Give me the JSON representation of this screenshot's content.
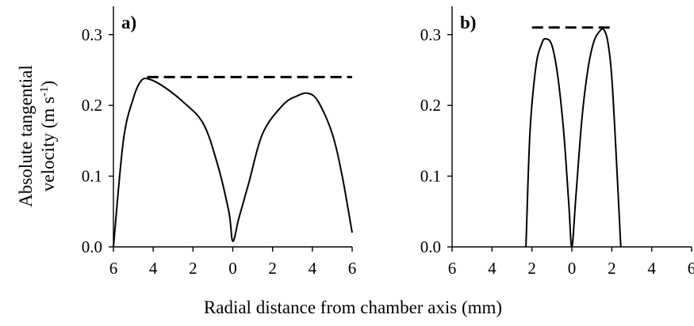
{
  "figure": {
    "shared_xlabel": "Radial distance from chamber axis (mm)",
    "ylabel_line1": "Absolute tangential",
    "ylabel_line2_prefix": "velocity (m s",
    "ylabel_line2_sup": "-1",
    "ylabel_line2_suffix": ")"
  },
  "chart_data": [
    {
      "type": "line",
      "panel": "a)",
      "x_axis": {
        "range": [
          -6,
          6
        ],
        "ticks": [
          -6,
          -4,
          -2,
          0,
          2,
          4,
          6
        ],
        "tick_labels": [
          "6",
          "4",
          "2",
          "0",
          "2",
          "4",
          "6"
        ]
      },
      "y_axis": {
        "range": [
          0,
          0.34
        ],
        "ticks": [
          0,
          0.1,
          0.2,
          0.3
        ],
        "tick_labels": [
          "0.0",
          "0.1",
          "0.2",
          "0.3"
        ]
      },
      "series": [
        {
          "style": "solid",
          "x": [
            -6.0,
            -5.5,
            -5.0,
            -4.6,
            -4.2,
            -3.5,
            -2.5,
            -1.5,
            -0.8,
            -0.2,
            0.0,
            0.3,
            0.8,
            1.5,
            2.5,
            3.2,
            3.8,
            4.3,
            5.0,
            5.5,
            6.0
          ],
          "y": [
            0.0,
            0.15,
            0.21,
            0.235,
            0.237,
            0.227,
            0.205,
            0.175,
            0.12,
            0.05,
            0.008,
            0.04,
            0.09,
            0.16,
            0.2,
            0.213,
            0.217,
            0.205,
            0.16,
            0.1,
            0.02
          ]
        },
        {
          "style": "dashed",
          "x": [
            -4.3,
            6.0
          ],
          "y": [
            0.24,
            0.24
          ]
        }
      ]
    },
    {
      "type": "line",
      "panel": "b)",
      "x_axis": {
        "range": [
          -6,
          6
        ],
        "ticks": [
          -6,
          -4,
          -2,
          0,
          2,
          4,
          6
        ],
        "tick_labels": [
          "6",
          "4",
          "2",
          "0",
          "2",
          "4",
          "6"
        ]
      },
      "y_axis": {
        "range": [
          0,
          0.34
        ],
        "ticks": [
          0,
          0.1,
          0.2,
          0.3
        ],
        "tick_labels": [
          "0.0",
          "0.1",
          "0.2",
          "0.3"
        ]
      },
      "series": [
        {
          "style": "solid",
          "x": [
            -2.3,
            -2.1,
            -1.8,
            -1.5,
            -1.3,
            -1.0,
            -0.7,
            -0.4,
            -0.15,
            0.0,
            0.2,
            0.5,
            0.8,
            1.1,
            1.4,
            1.6,
            1.8,
            2.0,
            2.2,
            2.45
          ],
          "y": [
            0.0,
            0.16,
            0.255,
            0.288,
            0.294,
            0.285,
            0.24,
            0.16,
            0.06,
            0.0,
            0.07,
            0.18,
            0.25,
            0.29,
            0.305,
            0.307,
            0.29,
            0.24,
            0.14,
            0.0
          ]
        },
        {
          "style": "dashed",
          "x": [
            -2.0,
            2.0
          ],
          "y": [
            0.31,
            0.31
          ]
        }
      ]
    }
  ]
}
